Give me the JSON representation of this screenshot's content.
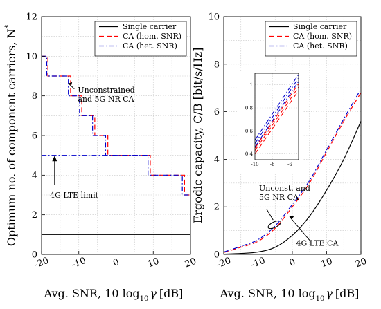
{
  "chart_data": [
    {
      "type": "line",
      "xlabel": "Avg. SNR, 10 log",
      "xlabel_sub": "10",
      "xlabel_sym": "γ",
      "xlabel_unit": "[dB]",
      "ylabel": "Optimum no. of component carriers, N",
      "ylabel_sup": "*",
      "xlim": [
        -20,
        20
      ],
      "ylim": [
        0,
        12
      ],
      "xticks": [
        -20,
        -10,
        0,
        10,
        20
      ],
      "yticks": [
        0,
        2,
        4,
        6,
        8,
        10,
        12
      ],
      "grid": true,
      "legend_position": "top-right",
      "series": [
        {
          "name": "Single carrier",
          "color": "#000000",
          "style": "solid",
          "x": [
            -20,
            20
          ],
          "y": [
            1,
            1
          ]
        },
        {
          "name": "CA (hom. SNR)",
          "color": "#ff0000",
          "style": "dash",
          "steps": [
            [
              -20,
              10
            ],
            [
              -18.3,
              9
            ],
            [
              -12.2,
              8
            ],
            [
              -9.2,
              7
            ],
            [
              -5.7,
              6
            ],
            [
              -2.2,
              5
            ],
            [
              2.8,
              5
            ],
            [
              9.2,
              4
            ],
            [
              18.4,
              3
            ],
            [
              20,
              3
            ]
          ]
        },
        {
          "name": "CA (het. SNR)",
          "color": "#0000cc",
          "style": "dashdot",
          "steps": [
            [
              -20,
              10
            ],
            [
              -18.6,
              9
            ],
            [
              -12.8,
              8
            ],
            [
              -9.8,
              7
            ],
            [
              -6.3,
              6
            ],
            [
              -2.8,
              5
            ],
            [
              2.2,
              5
            ],
            [
              8.6,
              4
            ],
            [
              17.8,
              3
            ],
            [
              20,
              3
            ]
          ]
        },
        {
          "name": "4G limit",
          "color": "#0000cc",
          "style": "dashdot",
          "x": [
            -20,
            9.0
          ],
          "y": [
            5,
            5
          ]
        }
      ],
      "annotations": [
        {
          "text_lines": [
            "Unconstrained",
            "and 5G NR CA"
          ],
          "x": -11,
          "y": 8.1
        },
        {
          "text": "4G LTE limit",
          "x": -17,
          "y": 3.0
        }
      ]
    },
    {
      "type": "line",
      "xlabel": "Avg. SNR, 10 log",
      "xlabel_sub": "10",
      "xlabel_sym": "γ",
      "xlabel_unit": "[dB]",
      "ylabel": "Ergodic capacity, C/B [bit/s/Hz]",
      "xlim": [
        -20,
        20
      ],
      "ylim": [
        0,
        10
      ],
      "xticks": [
        -20,
        -10,
        0,
        10,
        20
      ],
      "yticks": [
        0,
        2,
        4,
        6,
        8,
        10
      ],
      "grid": true,
      "legend_position": "top-right",
      "series": [
        {
          "name": "Single carrier",
          "color": "#000000",
          "style": "solid",
          "x": [
            -20,
            -15,
            -10,
            -5,
            0,
            5,
            10,
            15,
            20
          ],
          "y": [
            0.01,
            0.04,
            0.1,
            0.3,
            0.8,
            1.6,
            2.7,
            4.0,
            5.6
          ]
        },
        {
          "name": "CA (hom. SNR)",
          "color": "#ff0000",
          "style": "dash",
          "x": [
            -20,
            -15,
            -10,
            -5,
            0,
            5,
            10,
            15,
            20
          ],
          "y": [
            0.08,
            0.3,
            0.55,
            1.1,
            2.0,
            3.0,
            4.3,
            5.6,
            6.8
          ]
        },
        {
          "name": "CA (het. SNR)",
          "color": "#0000cc",
          "style": "dashdot",
          "x": [
            -20,
            -15,
            -10,
            -5,
            0,
            5,
            10,
            15,
            20
          ],
          "y": [
            0.1,
            0.34,
            0.62,
            1.2,
            2.1,
            3.1,
            4.4,
            5.7,
            6.95
          ]
        }
      ],
      "annotations": [
        {
          "text_lines": [
            "Unconst. and",
            "5G NR CA"
          ],
          "x": -9.7,
          "y": 2.5
        },
        {
          "text": "4G LTE CA",
          "x": 10,
          "y": 0.45
        }
      ],
      "inset": {
        "xlim": [
          -10,
          -5
        ],
        "ylim": [
          0.35,
          1.1
        ],
        "xticks": [
          -10,
          -8,
          -6
        ],
        "yticks": [
          0.4,
          0.6,
          0.8,
          1
        ],
        "series": [
          {
            "color": "#ff0000",
            "style": "dash",
            "x": [
              -10,
              -5
            ],
            "y": [
              0.4,
              0.95
            ]
          },
          {
            "color": "#ff0000",
            "style": "dash",
            "x": [
              -10,
              -5
            ],
            "y": [
              0.43,
              0.98
            ]
          },
          {
            "color": "#ff0000",
            "style": "dash",
            "x": [
              -10,
              -5
            ],
            "y": [
              0.45,
              1.01
            ]
          },
          {
            "color": "#0000cc",
            "style": "dashdot",
            "x": [
              -10,
              -5
            ],
            "y": [
              0.46,
              1.03
            ]
          },
          {
            "color": "#0000cc",
            "style": "dashdot",
            "x": [
              -10,
              -5
            ],
            "y": [
              0.49,
              1.06
            ]
          },
          {
            "color": "#0000cc",
            "style": "dashdot",
            "x": [
              -10,
              -5
            ],
            "y": [
              0.52,
              1.09
            ]
          }
        ]
      }
    }
  ]
}
